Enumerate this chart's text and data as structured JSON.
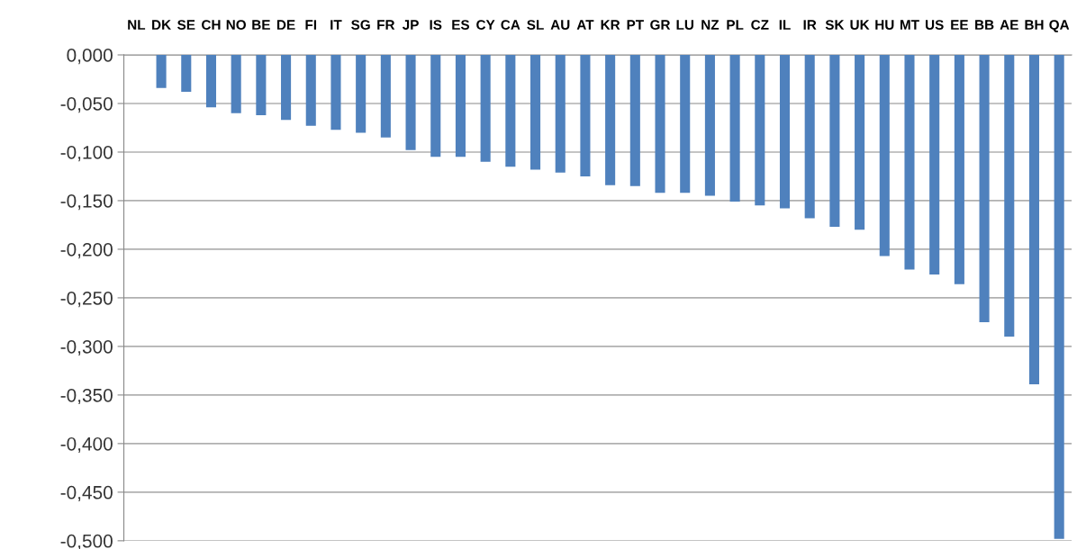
{
  "chart_data": {
    "type": "bar",
    "categories": [
      "NL",
      "DK",
      "SE",
      "CH",
      "NO",
      "BE",
      "DE",
      "FI",
      "IT",
      "SG",
      "FR",
      "JP",
      "IS",
      "ES",
      "CY",
      "CA",
      "SL",
      "AU",
      "AT",
      "KR",
      "PT",
      "GR",
      "LU",
      "NZ",
      "PL",
      "CZ",
      "IL",
      "IR",
      "SK",
      "UK",
      "HU",
      "MT",
      "US",
      "EE",
      "BB",
      "AE",
      "BH",
      "QA"
    ],
    "values": [
      0,
      -0.034,
      -0.038,
      -0.054,
      -0.06,
      -0.062,
      -0.067,
      -0.073,
      -0.077,
      -0.08,
      -0.085,
      -0.098,
      -0.105,
      -0.105,
      -0.11,
      -0.115,
      -0.118,
      -0.121,
      -0.125,
      -0.134,
      -0.135,
      -0.142,
      -0.142,
      -0.145,
      -0.151,
      -0.155,
      -0.158,
      -0.168,
      -0.177,
      -0.18,
      -0.207,
      -0.221,
      -0.226,
      -0.236,
      -0.275,
      -0.29,
      -0.339,
      -0.498
    ],
    "color": "#4f81bd",
    "ylim": [
      -0.5,
      0
    ],
    "yticks": [
      {
        "value": 0,
        "label": "0,000"
      },
      {
        "value": -0.05,
        "label": "-0,050"
      },
      {
        "value": -0.1,
        "label": "-0,100"
      },
      {
        "value": -0.15,
        "label": "-0,150"
      },
      {
        "value": -0.2,
        "label": "-0,200"
      },
      {
        "value": -0.25,
        "label": "-0,250"
      },
      {
        "value": -0.3,
        "label": "-0,300"
      },
      {
        "value": -0.35,
        "label": "-0,350"
      },
      {
        "value": -0.4,
        "label": "-0,400"
      },
      {
        "value": -0.45,
        "label": "-0,450"
      },
      {
        "value": -0.5,
        "label": "-0,500"
      }
    ],
    "grid": "y"
  }
}
